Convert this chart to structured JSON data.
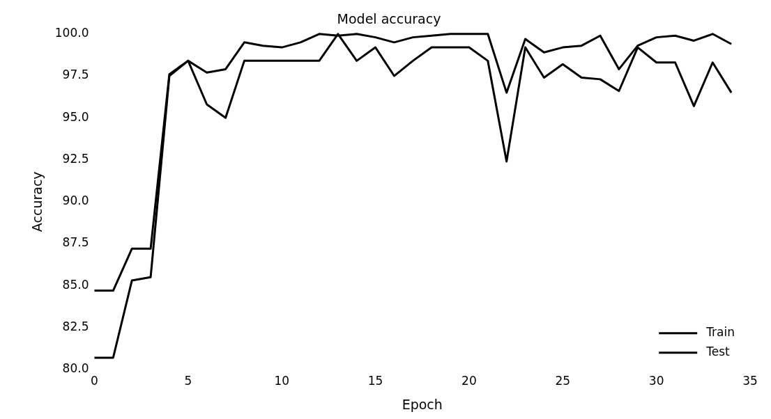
{
  "chart_data": {
    "type": "line",
    "title": "Model accuracy",
    "xlabel": "Epoch",
    "ylabel": "Accuracy",
    "x": [
      0,
      1,
      2,
      3,
      4,
      5,
      6,
      7,
      8,
      9,
      10,
      11,
      12,
      13,
      14,
      15,
      16,
      17,
      18,
      19,
      20,
      21,
      22,
      23,
      24,
      25,
      26,
      27,
      28,
      29,
      30,
      31,
      32,
      33,
      34
    ],
    "series": [
      {
        "name": "Train",
        "color": "#000000",
        "values": [
          84.7,
          84.7,
          87.2,
          87.2,
          97.6,
          98.4,
          97.7,
          97.9,
          99.5,
          99.3,
          99.2,
          99.5,
          100.0,
          99.9,
          100.0,
          99.8,
          99.5,
          99.8,
          99.9,
          100.0,
          100.0,
          100.0,
          96.5,
          99.7,
          98.9,
          99.2,
          99.3,
          99.9,
          97.9,
          99.3,
          99.8,
          99.9,
          99.6,
          100.0,
          99.4
        ]
      },
      {
        "name": "Test",
        "color": "#000000",
        "values": [
          80.7,
          80.7,
          85.3,
          85.5,
          97.5,
          98.4,
          95.8,
          95.0,
          98.4,
          98.4,
          98.4,
          98.4,
          98.4,
          100.0,
          98.4,
          99.2,
          97.5,
          98.4,
          99.2,
          99.2,
          99.2,
          98.4,
          92.4,
          99.2,
          97.4,
          98.2,
          97.4,
          97.3,
          96.6,
          99.2,
          98.3,
          98.3,
          95.7,
          98.3,
          96.5
        ]
      }
    ],
    "xlim": [
      0,
      35
    ],
    "ylim": [
      80,
      100
    ],
    "xticks": [
      0,
      5,
      10,
      15,
      20,
      25,
      30,
      35
    ],
    "yticks": [
      {
        "value": 80,
        "label": "80.0"
      },
      {
        "value": 82.5,
        "label": "82.5"
      },
      {
        "value": 85,
        "label": "85.0"
      },
      {
        "value": 87.5,
        "label": "87.5"
      },
      {
        "value": 90,
        "label": "90.0"
      },
      {
        "value": 92.5,
        "label": "92.5"
      },
      {
        "value": 95,
        "label": "95.0"
      },
      {
        "value": 97.5,
        "label": "97.5"
      },
      {
        "value": 100,
        "label": "100.0"
      }
    ],
    "legend": "bottom right",
    "grid": false,
    "marker": "none",
    "line_style": "solid"
  }
}
